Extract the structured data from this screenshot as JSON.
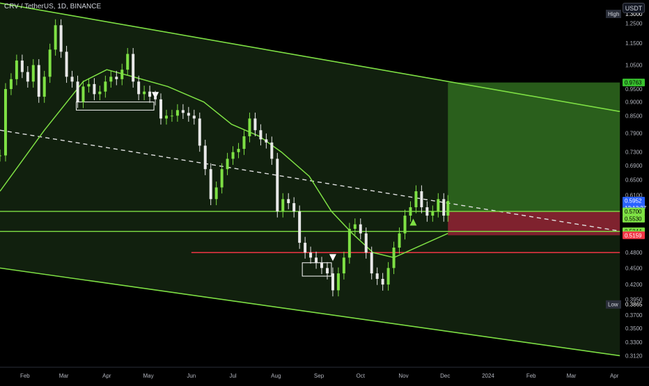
{
  "header": {
    "symbol_line": "CRV / TetherUS, 1D, BINANCE",
    "currency": "USDT"
  },
  "chart_data": {
    "type": "candlestick",
    "title": "CRV / TetherUS, 1D, BINANCE",
    "y_scale": "log",
    "ylim": [
      0.3,
      1.3
    ],
    "xlim": [
      "2023-01-14",
      "2024-04-25"
    ],
    "x_tick_labels": [
      {
        "date": "2023-02-01",
        "label": "Feb"
      },
      {
        "date": "2023-03-01",
        "label": "Mar"
      },
      {
        "date": "2023-04-01",
        "label": "Apr"
      },
      {
        "date": "2023-05-01",
        "label": "May"
      },
      {
        "date": "2023-06-01",
        "label": "Jun"
      },
      {
        "date": "2023-07-01",
        "label": "Jul"
      },
      {
        "date": "2023-08-01",
        "label": "Aug"
      },
      {
        "date": "2023-09-01",
        "label": "Sep"
      },
      {
        "date": "2023-10-01",
        "label": "Oct"
      },
      {
        "date": "2023-11-01",
        "label": "Nov"
      },
      {
        "date": "2023-12-01",
        "label": "Dec"
      },
      {
        "date": "2024-01-01",
        "label": "2024"
      },
      {
        "date": "2024-02-01",
        "label": "Feb"
      },
      {
        "date": "2024-03-01",
        "label": "Mar"
      },
      {
        "date": "2024-04-01",
        "label": "Apr"
      }
    ],
    "y_tick_labels": [
      {
        "value": 1.25,
        "label": "1.2500"
      },
      {
        "value": 1.15,
        "label": "1.1500"
      },
      {
        "value": 1.05,
        "label": "1.0500"
      },
      {
        "value": 0.95,
        "label": "0.9500"
      },
      {
        "value": 0.9,
        "label": "0.9000"
      },
      {
        "value": 0.85,
        "label": "0.8500"
      },
      {
        "value": 0.79,
        "label": "0.7900"
      },
      {
        "value": 0.73,
        "label": "0.7300"
      },
      {
        "value": 0.69,
        "label": "0.6900"
      },
      {
        "value": 0.65,
        "label": "0.6500"
      },
      {
        "value": 0.61,
        "label": "0.6100"
      },
      {
        "value": 0.48,
        "label": "0.4800"
      },
      {
        "value": 0.45,
        "label": "0.4500"
      },
      {
        "value": 0.42,
        "label": "0.4200"
      },
      {
        "value": 0.395,
        "label": "0.3950"
      },
      {
        "value": 0.37,
        "label": "0.3700"
      },
      {
        "value": 0.35,
        "label": "0.3500"
      },
      {
        "value": 0.33,
        "label": "0.3300"
      },
      {
        "value": 0.312,
        "label": "0.3120"
      }
    ],
    "price_badges": [
      {
        "label": "0.9763",
        "value": 0.9763,
        "color": "#38c22e",
        "text_color": "#000000"
      },
      {
        "label": "0.5952",
        "value": 0.5952,
        "color": "#2962ff",
        "text_color": "#ffffff",
        "sub": "12:13:27"
      },
      {
        "label": "0.5700",
        "value": 0.57,
        "color": "#7ee044",
        "text_color": "#000000"
      },
      {
        "label": "0.5530",
        "value": 0.553,
        "color": "#7ee044",
        "text_color": "#000000"
      },
      {
        "label": "0.5244",
        "value": 0.5244,
        "color": "#7ee044",
        "text_color": "#000000"
      },
      {
        "label": "0.5178",
        "value": 0.5178,
        "color": "#7ee044",
        "text_color": "#000000"
      },
      {
        "label": "0.5159",
        "value": 0.5159,
        "color": "#f23645",
        "text_color": "#ffffff"
      }
    ],
    "high_label": {
      "label": "High",
      "value_label": "1.3000",
      "value": 1.3
    },
    "low_label": {
      "label": "Low",
      "value_label": "0.3865",
      "value": 0.3865
    },
    "current_price": 0.5952,
    "countdown": "12:13:27",
    "candles": [
      {
        "date": "2023-01-14",
        "close": 0.72
      },
      {
        "date": "2023-01-18",
        "close": 0.95
      },
      {
        "date": "2023-01-22",
        "close": 0.99
      },
      {
        "date": "2023-01-26",
        "close": 1.07
      },
      {
        "date": "2023-01-30",
        "close": 1.02
      },
      {
        "date": "2023-02-03",
        "close": 0.98
      },
      {
        "date": "2023-02-07",
        "close": 1.05
      },
      {
        "date": "2023-02-11",
        "close": 0.92
      },
      {
        "date": "2023-02-15",
        "close": 1.0
      },
      {
        "date": "2023-02-19",
        "close": 1.12
      },
      {
        "date": "2023-02-23",
        "close": 1.24
      },
      {
        "date": "2023-02-27",
        "close": 1.11
      },
      {
        "date": "2023-03-03",
        "close": 1.0
      },
      {
        "date": "2023-03-07",
        "close": 0.98
      },
      {
        "date": "2023-03-11",
        "close": 0.9
      },
      {
        "date": "2023-03-15",
        "close": 0.96
      },
      {
        "date": "2023-03-19",
        "close": 0.97
      },
      {
        "date": "2023-03-23",
        "close": 0.93
      },
      {
        "date": "2023-03-27",
        "close": 0.94
      },
      {
        "date": "2023-03-31",
        "close": 0.98
      },
      {
        "date": "2023-04-04",
        "close": 1.0
      },
      {
        "date": "2023-04-08",
        "close": 0.99
      },
      {
        "date": "2023-04-12",
        "close": 1.03
      },
      {
        "date": "2023-04-16",
        "close": 1.1
      },
      {
        "date": "2023-04-20",
        "close": 0.98
      },
      {
        "date": "2023-04-24",
        "close": 0.93
      },
      {
        "date": "2023-04-28",
        "close": 0.94
      },
      {
        "date": "2023-05-02",
        "close": 0.92
      },
      {
        "date": "2023-05-06",
        "close": 0.91
      },
      {
        "date": "2023-05-10",
        "close": 0.84
      },
      {
        "date": "2023-05-14",
        "close": 0.85
      },
      {
        "date": "2023-05-18",
        "close": 0.85
      },
      {
        "date": "2023-05-22",
        "close": 0.87
      },
      {
        "date": "2023-05-26",
        "close": 0.86
      },
      {
        "date": "2023-05-30",
        "close": 0.85
      },
      {
        "date": "2023-06-03",
        "close": 0.84
      },
      {
        "date": "2023-06-07",
        "close": 0.75
      },
      {
        "date": "2023-06-11",
        "close": 0.68
      },
      {
        "date": "2023-06-15",
        "close": 0.6
      },
      {
        "date": "2023-06-19",
        "close": 0.63
      },
      {
        "date": "2023-06-23",
        "close": 0.68
      },
      {
        "date": "2023-06-27",
        "close": 0.71
      },
      {
        "date": "2023-07-01",
        "close": 0.73
      },
      {
        "date": "2023-07-05",
        "close": 0.74
      },
      {
        "date": "2023-07-09",
        "close": 0.78
      },
      {
        "date": "2023-07-13",
        "close": 0.84
      },
      {
        "date": "2023-07-17",
        "close": 0.8
      },
      {
        "date": "2023-07-21",
        "close": 0.77
      },
      {
        "date": "2023-07-25",
        "close": 0.76
      },
      {
        "date": "2023-07-29",
        "close": 0.71
      },
      {
        "date": "2023-08-02",
        "close": 0.57
      },
      {
        "date": "2023-08-06",
        "close": 0.6
      },
      {
        "date": "2023-08-10",
        "close": 0.59
      },
      {
        "date": "2023-08-14",
        "close": 0.57
      },
      {
        "date": "2023-08-18",
        "close": 0.5
      },
      {
        "date": "2023-08-22",
        "close": 0.48
      },
      {
        "date": "2023-08-26",
        "close": 0.47
      },
      {
        "date": "2023-08-30",
        "close": 0.46
      },
      {
        "date": "2023-09-03",
        "close": 0.45
      },
      {
        "date": "2023-09-07",
        "close": 0.44
      },
      {
        "date": "2023-09-11",
        "close": 0.41
      },
      {
        "date": "2023-09-15",
        "close": 0.44
      },
      {
        "date": "2023-09-19",
        "close": 0.47
      },
      {
        "date": "2023-09-23",
        "close": 0.53
      },
      {
        "date": "2023-09-27",
        "close": 0.54
      },
      {
        "date": "2023-10-01",
        "close": 0.52
      },
      {
        "date": "2023-10-05",
        "close": 0.48
      },
      {
        "date": "2023-10-09",
        "close": 0.44
      },
      {
        "date": "2023-10-13",
        "close": 0.43
      },
      {
        "date": "2023-10-17",
        "close": 0.42
      },
      {
        "date": "2023-10-21",
        "close": 0.45
      },
      {
        "date": "2023-10-25",
        "close": 0.49
      },
      {
        "date": "2023-10-29",
        "close": 0.52
      },
      {
        "date": "2023-11-02",
        "close": 0.56
      },
      {
        "date": "2023-11-06",
        "close": 0.58
      },
      {
        "date": "2023-11-10",
        "close": 0.62
      },
      {
        "date": "2023-11-14",
        "close": 0.58
      },
      {
        "date": "2023-11-18",
        "close": 0.56
      },
      {
        "date": "2023-11-22",
        "close": 0.57
      },
      {
        "date": "2023-11-26",
        "close": 0.6
      },
      {
        "date": "2023-11-30",
        "close": 0.56
      },
      {
        "date": "2023-12-03",
        "close": 0.5952
      }
    ],
    "moving_average": [
      {
        "date": "2023-01-14",
        "value": 0.62
      },
      {
        "date": "2023-02-15",
        "value": 0.8
      },
      {
        "date": "2023-03-15",
        "value": 0.98
      },
      {
        "date": "2023-04-01",
        "value": 1.03
      },
      {
        "date": "2023-04-20",
        "value": 1.0
      },
      {
        "date": "2023-05-15",
        "value": 0.96
      },
      {
        "date": "2023-06-10",
        "value": 0.9
      },
      {
        "date": "2023-06-30",
        "value": 0.82
      },
      {
        "date": "2023-07-20",
        "value": 0.78
      },
      {
        "date": "2023-08-05",
        "value": 0.73
      },
      {
        "date": "2023-08-25",
        "value": 0.66
      },
      {
        "date": "2023-09-10",
        "value": 0.57
      },
      {
        "date": "2023-09-25",
        "value": 0.52
      },
      {
        "date": "2023-10-10",
        "value": 0.48
      },
      {
        "date": "2023-10-25",
        "value": 0.47
      },
      {
        "date": "2023-11-10",
        "value": 0.49
      },
      {
        "date": "2023-12-03",
        "value": 0.52
      }
    ],
    "channel_upper": [
      {
        "date": "2023-01-14",
        "value": 1.36
      },
      {
        "date": "2024-04-05",
        "value": 0.865
      }
    ],
    "channel_lower": [
      {
        "date": "2023-01-14",
        "value": 0.45
      },
      {
        "date": "2024-04-05",
        "value": 0.312
      }
    ],
    "trend_dashed": [
      {
        "date": "2023-01-14",
        "value": 0.8
      },
      {
        "date": "2024-04-05",
        "value": 0.525
      }
    ],
    "horizontal_levels": [
      {
        "value": 0.57,
        "color": "#7ee044",
        "from": "2023-01-14",
        "to": "2024-04-05"
      },
      {
        "value": 0.5244,
        "color": "#7ee044",
        "from": "2023-01-14",
        "to": "2024-04-05"
      },
      {
        "value": 0.48,
        "color": "#f23645",
        "from": "2023-06-01",
        "to": "2024-04-05"
      }
    ],
    "position_tool": {
      "start": "2023-12-03",
      "end": "2024-04-05",
      "entry": 0.5703,
      "target": 0.9763,
      "stop": 0.5159
    },
    "annotations": [
      {
        "type": "box",
        "from": "2023-03-10",
        "to": "2023-05-05",
        "value": 0.87,
        "value2": 0.9
      },
      {
        "type": "arrow-down",
        "date": "2023-05-06",
        "value": 0.925
      },
      {
        "type": "box",
        "from": "2023-08-20",
        "to": "2023-09-10",
        "value": 0.435,
        "value2": 0.46
      },
      {
        "type": "arrow-down",
        "date": "2023-09-11",
        "value": 0.47
      },
      {
        "type": "arrow-up",
        "date": "2023-11-08",
        "value": 0.545
      }
    ]
  }
}
